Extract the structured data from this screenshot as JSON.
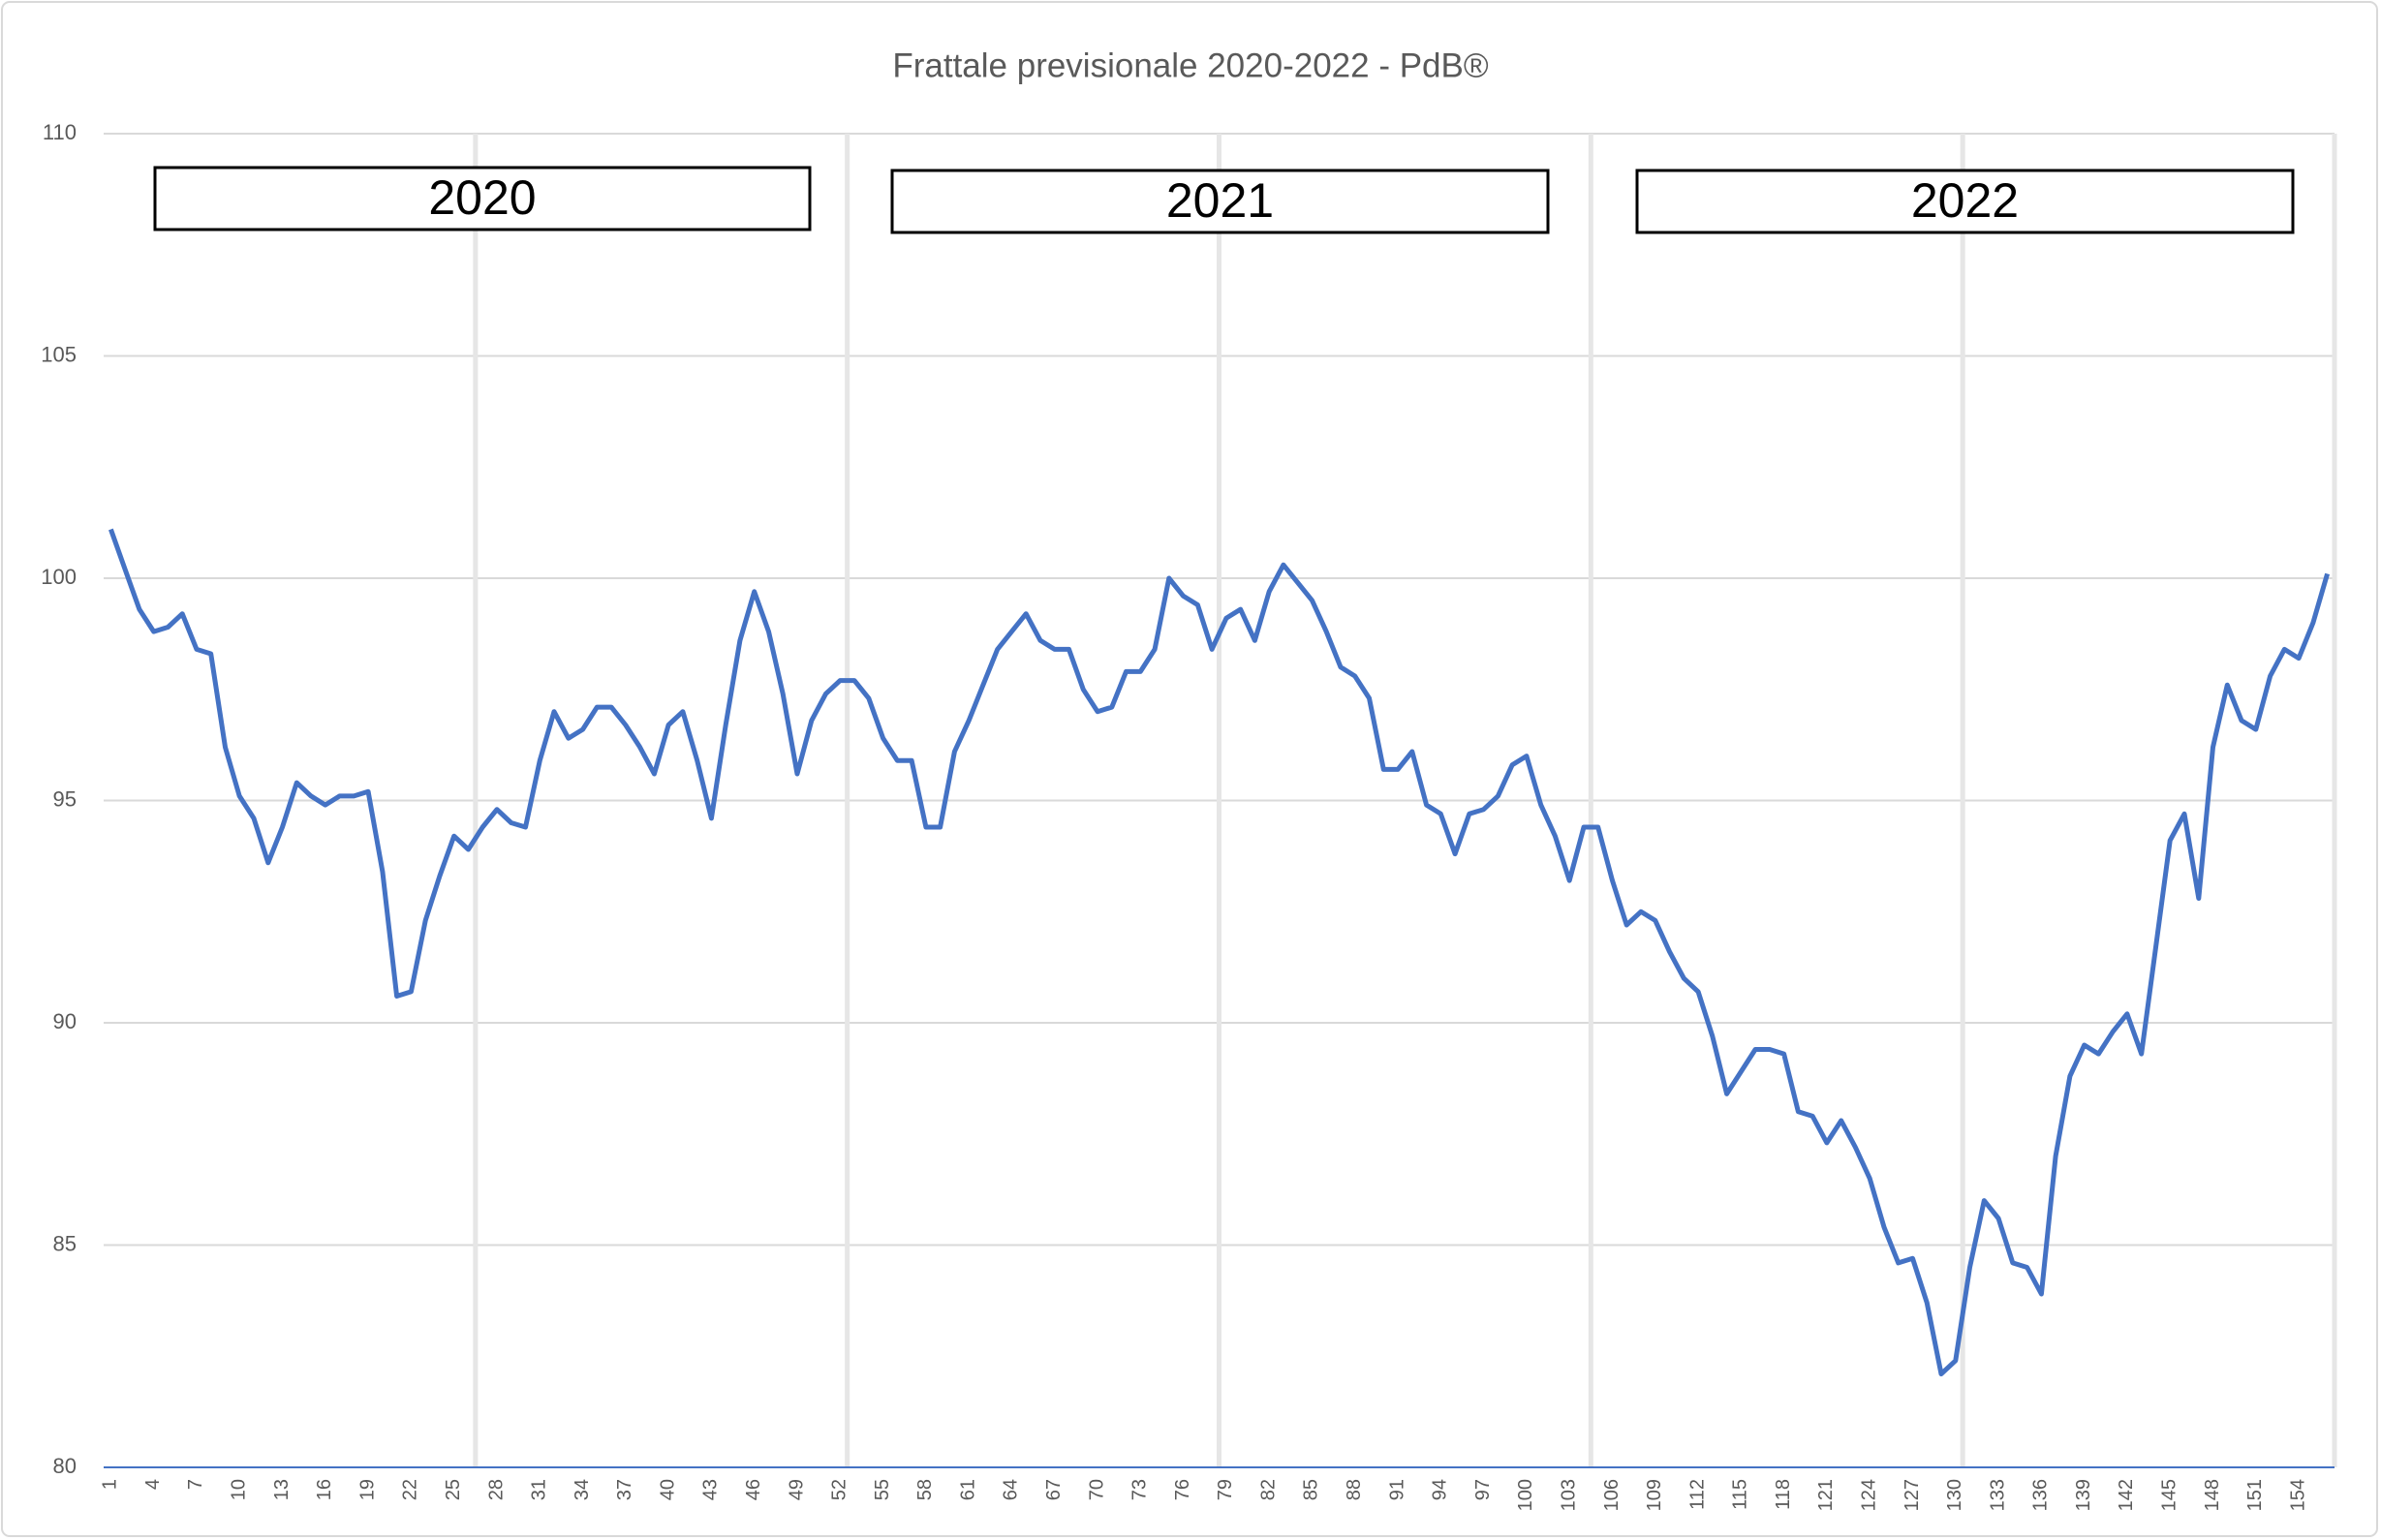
{
  "chart_data": {
    "type": "line",
    "title": "Frattale previsionale 2020-2022 - PdB®",
    "annotations": [
      "2020",
      "2021",
      "2022"
    ],
    "categories": [
      "1",
      null,
      null,
      "4",
      null,
      null,
      "7",
      null,
      null,
      "10",
      null,
      null,
      "13",
      null,
      null,
      "16",
      null,
      null,
      "19",
      null,
      null,
      "22",
      null,
      null,
      "25",
      null,
      null,
      "28",
      null,
      null,
      "31",
      null,
      null,
      "34",
      null,
      null,
      "37",
      null,
      null,
      "40",
      null,
      null,
      "43",
      null,
      null,
      "46",
      null,
      null,
      "49",
      null,
      null,
      "52",
      null,
      null,
      "55",
      null,
      null,
      "58",
      null,
      null,
      "61",
      null,
      null,
      "64",
      null,
      null,
      "67",
      null,
      null,
      "70",
      null,
      null,
      "73",
      null,
      null,
      "76",
      null,
      null,
      "79",
      null,
      null,
      "82",
      null,
      null,
      "85",
      null,
      null,
      "88",
      null,
      null,
      "91",
      null,
      null,
      "94",
      null,
      null,
      "97",
      null,
      null,
      "100",
      null,
      null,
      "103",
      null,
      null,
      "106",
      null,
      null,
      "109",
      null,
      null,
      "112",
      null,
      null,
      "115",
      null,
      null,
      "118",
      null,
      null,
      "121",
      null,
      null,
      "124",
      null,
      null,
      "127",
      null,
      null,
      "130",
      null,
      null,
      "133",
      null,
      null,
      "136",
      null,
      null,
      "139",
      null,
      null,
      "142",
      null,
      null,
      "145",
      null,
      null,
      "148",
      null,
      null,
      "151",
      null,
      null,
      "154",
      null,
      null
    ],
    "series": [
      {
        "name": "Frattale",
        "color": "#4472c4",
        "values": [
          101.1,
          100.2,
          99.3,
          98.8,
          98.9,
          99.2,
          98.4,
          98.3,
          96.2,
          95.1,
          94.6,
          93.6,
          94.4,
          95.4,
          95.1,
          94.9,
          95.1,
          95.1,
          95.2,
          93.4,
          90.6,
          90.7,
          92.3,
          93.3,
          94.2,
          93.9,
          94.4,
          94.8,
          94.5,
          94.4,
          95.9,
          97.0,
          96.4,
          96.6,
          97.1,
          97.1,
          96.7,
          96.2,
          95.6,
          96.7,
          97.0,
          95.9,
          94.6,
          96.7,
          98.6,
          99.7,
          98.8,
          97.4,
          95.6,
          96.8,
          97.4,
          97.7,
          97.7,
          97.3,
          96.4,
          95.9,
          95.9,
          94.4,
          94.4,
          96.1,
          96.8,
          97.6,
          98.4,
          98.8,
          99.2,
          98.6,
          98.4,
          98.4,
          97.5,
          97.0,
          97.1,
          97.9,
          97.9,
          98.4,
          100.0,
          99.6,
          99.4,
          98.4,
          99.1,
          99.3,
          98.6,
          99.7,
          100.3,
          99.9,
          99.5,
          98.8,
          98.0,
          97.8,
          97.3,
          95.7,
          95.7,
          96.1,
          94.9,
          94.7,
          93.8,
          94.7,
          94.8,
          95.1,
          95.8,
          96.0,
          94.9,
          94.2,
          93.2,
          94.4,
          94.4,
          93.2,
          92.2,
          92.5,
          92.3,
          91.6,
          91.0,
          90.7,
          89.7,
          88.4,
          88.9,
          89.4,
          89.4,
          89.3,
          88.0,
          87.9,
          87.3,
          87.8,
          87.2,
          86.5,
          85.4,
          84.6,
          84.7,
          83.7,
          82.1,
          82.4,
          84.5,
          86.0,
          85.6,
          84.6,
          84.5,
          83.9,
          87.0,
          88.8,
          89.5,
          89.3,
          89.8,
          90.2,
          89.3,
          91.7,
          94.1,
          94.7,
          92.8,
          96.2,
          97.6,
          96.8,
          96.6,
          97.8,
          98.4,
          98.2,
          99.0,
          100.1
        ]
      }
    ],
    "ylim": [
      80,
      110
    ],
    "yticks": [
      80,
      85,
      90,
      95,
      100,
      105,
      110
    ],
    "grid": true
  }
}
